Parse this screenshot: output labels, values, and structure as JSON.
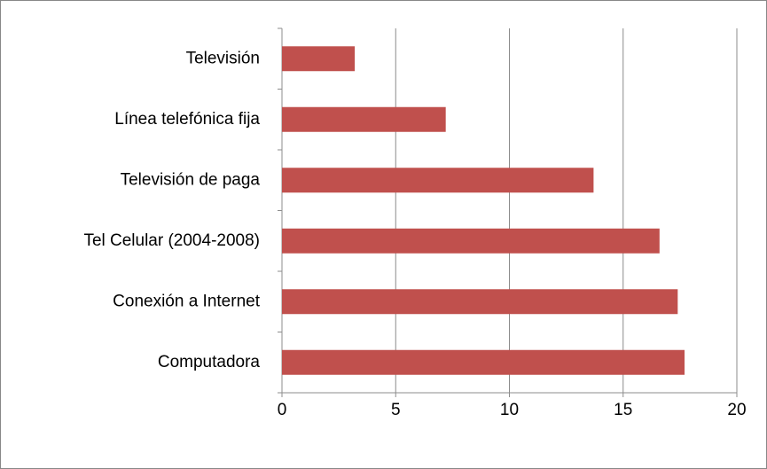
{
  "chart_data": {
    "type": "bar",
    "orientation": "horizontal",
    "categories": [
      "Televisión",
      "Línea telefónica fija",
      "Televisión de paga",
      "Tel Celular (2004-2008)",
      "Conexión a Internet",
      "Computadora"
    ],
    "values": [
      3.2,
      7.2,
      13.7,
      16.6,
      17.4,
      17.7
    ],
    "color": "#c0504d",
    "xlim": [
      0,
      20
    ],
    "xticks": [
      0,
      5,
      10,
      15,
      20
    ],
    "grid": true
  }
}
